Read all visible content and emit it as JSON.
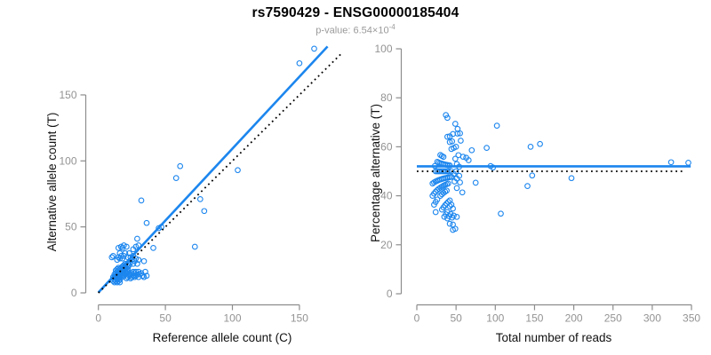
{
  "header": {
    "title": "rs7590429 - ENSG00000185404",
    "pvalue_base": "p-value: 6.54×10",
    "pvalue_exponent": "-4"
  },
  "colors": {
    "accent": "#1C86EE",
    "point": "#1C86EE",
    "identity_line": "#000000",
    "axis": "#8d8d8d",
    "tick_label": "#939393",
    "axis_title": "#111111",
    "subtitle": "#9a9a9a",
    "background": "#ffffff"
  },
  "chart_data": [
    {
      "type": "scatter",
      "name": "allele-counts-scatter",
      "xlabel": "Reference allele count (C)",
      "ylabel": "Alternative allele count (T)",
      "xlim": [
        0,
        150
      ],
      "ylim": [
        0,
        150
      ],
      "xticks": [
        0,
        50,
        100,
        150
      ],
      "yticks": [
        0,
        50,
        100,
        150
      ],
      "grid": false,
      "legend": "none",
      "marker": "open-circle",
      "points": [
        [
          161,
          185
        ],
        [
          150,
          174
        ],
        [
          104,
          93
        ],
        [
          61,
          96
        ],
        [
          58,
          87
        ],
        [
          76,
          71
        ],
        [
          79,
          62
        ],
        [
          47,
          50
        ],
        [
          45,
          49
        ],
        [
          36,
          53
        ],
        [
          32,
          70
        ],
        [
          29,
          41
        ],
        [
          41,
          34
        ],
        [
          72,
          35
        ],
        [
          11,
          9
        ],
        [
          12,
          10
        ],
        [
          12,
          12
        ],
        [
          13,
          9
        ],
        [
          13,
          11
        ],
        [
          13,
          13
        ],
        [
          14,
          10
        ],
        [
          14,
          12
        ],
        [
          14,
          14
        ],
        [
          14,
          16
        ],
        [
          15,
          9
        ],
        [
          15,
          11
        ],
        [
          15,
          13
        ],
        [
          15,
          15
        ],
        [
          16,
          10
        ],
        [
          16,
          12
        ],
        [
          16,
          14
        ],
        [
          16,
          16
        ],
        [
          12,
          14
        ],
        [
          13,
          15
        ],
        [
          14,
          8
        ],
        [
          15,
          17
        ],
        [
          16,
          8
        ],
        [
          11,
          12
        ],
        [
          12,
          8
        ],
        [
          13,
          17
        ],
        [
          14,
          18
        ],
        [
          15,
          19
        ],
        [
          16,
          18
        ],
        [
          17,
          13
        ],
        [
          17,
          15
        ],
        [
          17,
          17
        ],
        [
          17,
          19
        ],
        [
          18,
          12
        ],
        [
          18,
          14
        ],
        [
          18,
          16
        ],
        [
          18,
          18
        ],
        [
          18,
          20
        ],
        [
          19,
          13
        ],
        [
          19,
          15
        ],
        [
          19,
          17
        ],
        [
          19,
          19
        ],
        [
          19,
          21
        ],
        [
          20,
          14
        ],
        [
          20,
          16
        ],
        [
          20,
          18
        ],
        [
          20,
          20
        ],
        [
          20,
          22
        ],
        [
          21,
          15
        ],
        [
          21,
          17
        ],
        [
          21,
          19
        ],
        [
          22,
          16
        ],
        [
          22,
          18
        ],
        [
          22,
          20
        ],
        [
          22,
          22
        ],
        [
          14,
          25
        ],
        [
          15,
          27
        ],
        [
          15,
          34
        ],
        [
          16,
          26
        ],
        [
          16,
          30
        ],
        [
          17,
          35
        ],
        [
          17,
          28
        ],
        [
          18,
          26
        ],
        [
          18,
          34
        ],
        [
          19,
          36
        ],
        [
          19,
          28
        ],
        [
          20,
          30
        ],
        [
          21,
          35
        ],
        [
          22,
          27
        ],
        [
          23,
          30
        ],
        [
          10,
          27
        ],
        [
          11,
          28
        ],
        [
          21,
          11
        ],
        [
          22,
          12
        ],
        [
          23,
          13
        ],
        [
          24,
          11
        ],
        [
          24,
          14
        ],
        [
          25,
          12
        ],
        [
          25,
          15
        ],
        [
          26,
          13
        ],
        [
          26,
          16
        ],
        [
          27,
          12
        ],
        [
          27,
          15
        ],
        [
          28,
          13
        ],
        [
          28,
          16
        ],
        [
          29,
          14
        ],
        [
          30,
          12
        ],
        [
          30,
          16
        ],
        [
          31,
          14
        ],
        [
          32,
          15
        ],
        [
          33,
          13
        ],
        [
          35,
          16
        ],
        [
          36,
          13
        ],
        [
          34,
          12
        ],
        [
          23,
          21
        ],
        [
          24,
          23
        ],
        [
          25,
          25
        ],
        [
          26,
          22
        ],
        [
          27,
          24
        ],
        [
          28,
          26
        ],
        [
          29,
          22
        ],
        [
          30,
          25
        ],
        [
          24,
          27
        ],
        [
          26,
          28
        ],
        [
          28,
          35
        ],
        [
          30,
          36
        ],
        [
          34,
          24
        ],
        [
          26,
          33
        ]
      ],
      "lines": [
        {
          "name": "fit-line",
          "slope": 1.09,
          "intercept": 0.3,
          "x_range": [
            0,
            171
          ],
          "style": "solid",
          "color": "accent"
        },
        {
          "name": "identity-line",
          "slope": 1,
          "intercept": 0,
          "x_range": [
            0,
            182
          ],
          "style": "dotted",
          "color": "black"
        }
      ]
    },
    {
      "type": "scatter",
      "name": "coverage-vs-percentage-scatter",
      "xlabel": "Total number of reads",
      "ylabel": "Percentage alternative (T)",
      "xlim": [
        0,
        350
      ],
      "ylim": [
        0,
        100
      ],
      "xticks": [
        0,
        50,
        100,
        150,
        200,
        250,
        300,
        350
      ],
      "yticks": [
        0,
        20,
        40,
        60,
        80,
        100
      ],
      "grid": false,
      "legend": "none",
      "marker": "open-circle",
      "points_derived_from_chart": 0,
      "derivation": {
        "x": "ref + alt",
        "y": "100 * alt / (ref + alt)"
      },
      "lines": [
        {
          "name": "mean-line",
          "slope": 0,
          "intercept": 52,
          "x_range": [
            0,
            349
          ],
          "style": "solid",
          "color": "accent"
        },
        {
          "name": "expected-line",
          "slope": 0,
          "intercept": 50,
          "x_range": [
            0,
            342
          ],
          "style": "dotted",
          "color": "black"
        }
      ]
    }
  ]
}
